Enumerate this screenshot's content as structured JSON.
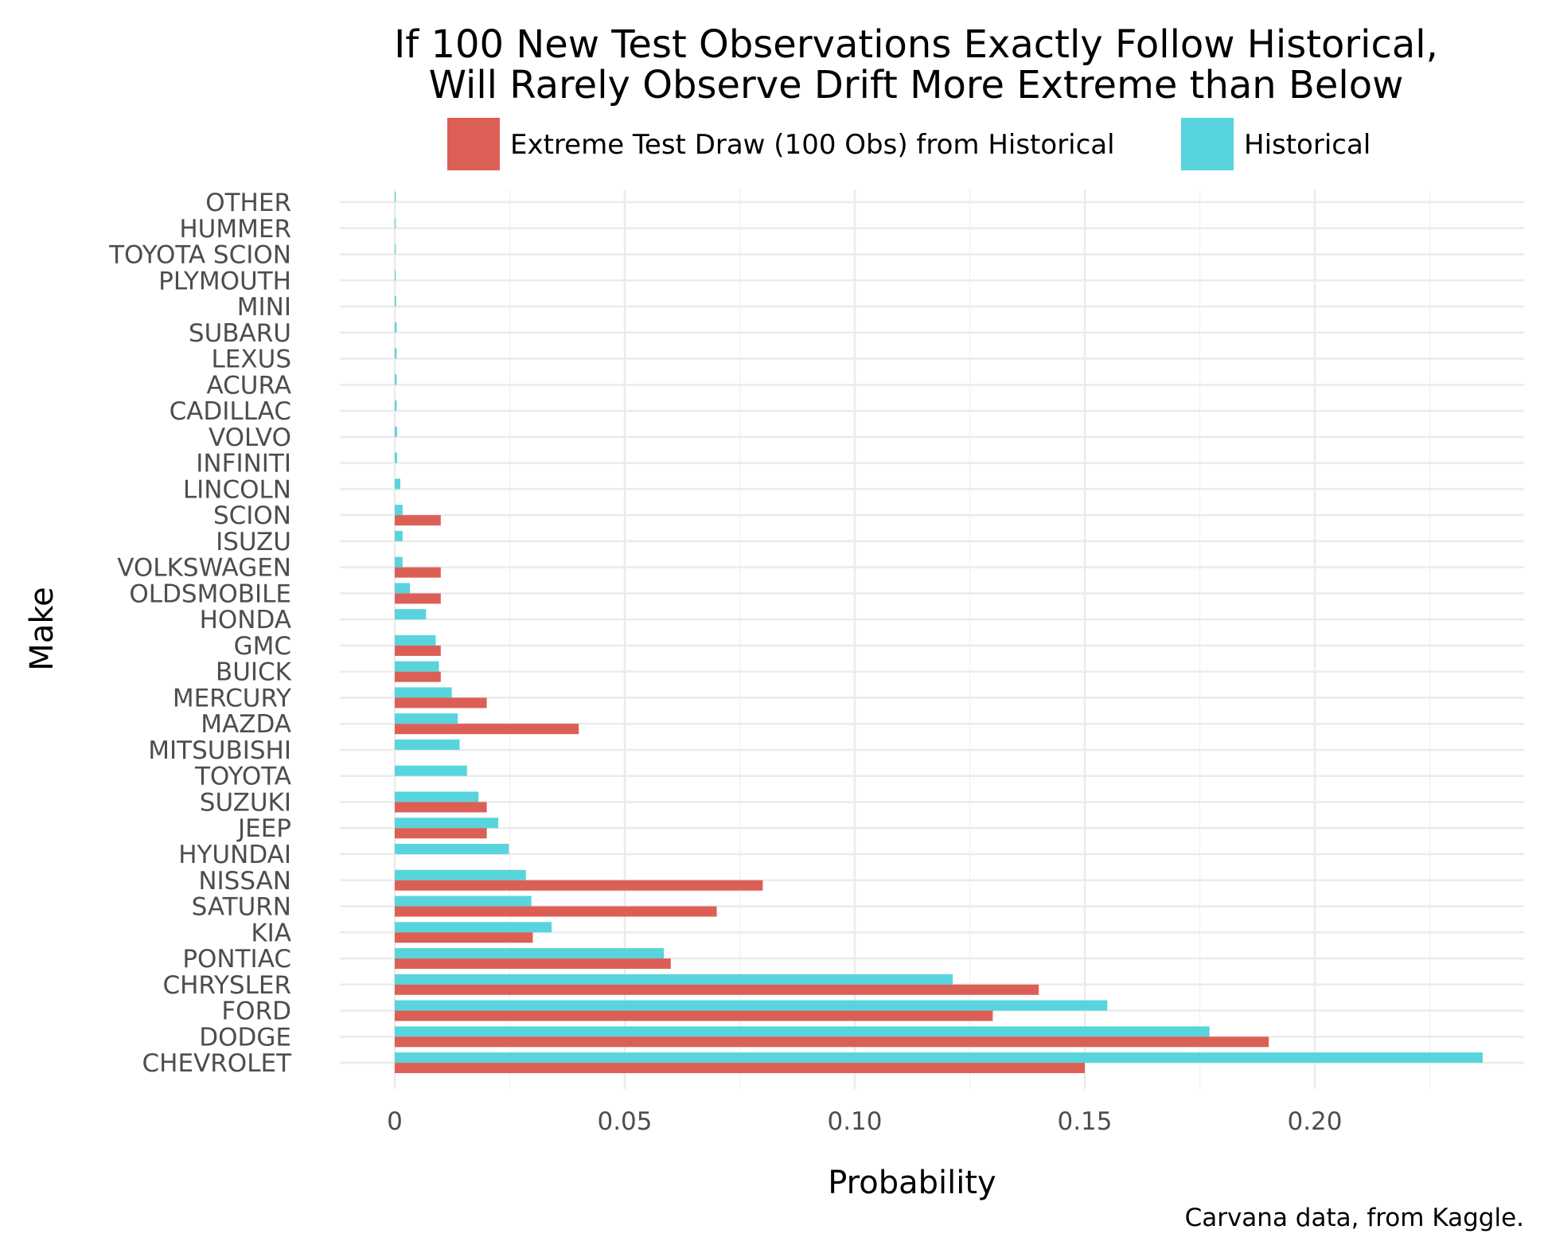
{
  "chart_data": {
    "type": "bar",
    "orientation": "horizontal",
    "title": [
      "If 100 New Test Observations Exactly Follow Historical,",
      "Will Rarely Observe Drift More Extreme than Below"
    ],
    "xlabel": "Probability",
    "ylabel": "Make",
    "caption": "Carvana data, from Kaggle.",
    "xlim": [
      -0.012,
      0.245
    ],
    "xticks": [
      {
        "value": 0,
        "label": "0"
      },
      {
        "value": 0.05,
        "label": "0.05"
      },
      {
        "value": 0.1,
        "label": "0.10"
      },
      {
        "value": 0.15,
        "label": "0.15"
      },
      {
        "value": 0.2,
        "label": "0.20"
      }
    ],
    "grid": true,
    "legend_position": "top",
    "categories": [
      "OTHER",
      "HUMMER",
      "TOYOTA SCION",
      "PLYMOUTH",
      "MINI",
      "SUBARU",
      "LEXUS",
      "ACURA",
      "CADILLAC",
      "VOLVO",
      "INFINITI",
      "LINCOLN",
      "SCION",
      "ISUZU",
      "VOLKSWAGEN",
      "OLDSMOBILE",
      "HONDA",
      "GMC",
      "BUICK",
      "MERCURY",
      "MAZDA",
      "MITSUBISHI",
      "TOYOTA",
      "SUZUKI",
      "JEEP",
      "HYUNDAI",
      "NISSAN",
      "SATURN",
      "KIA",
      "PONTIAC",
      "CHRYSLER",
      "FORD",
      "DODGE",
      "CHEVROLET"
    ],
    "series": [
      {
        "name": "Extreme Test Draw (100 Obs) from Historical",
        "color": "#dc5f56",
        "values": [
          0,
          0,
          0,
          0,
          0,
          0,
          0,
          0,
          0,
          0,
          0,
          0,
          0.01,
          0,
          0.01,
          0.01,
          0,
          0.01,
          0.01,
          0.02,
          0.04,
          0,
          0,
          0.02,
          0.02,
          0,
          0.08,
          0.07,
          0.03,
          0.06,
          0.14,
          0.13,
          0.19,
          0.15
        ]
      },
      {
        "name": "Historical",
        "color": "#58d4dc",
        "values": [
          1e-05,
          3e-05,
          4e-05,
          4e-05,
          0.0003,
          0.0004,
          0.0004,
          0.0004,
          0.0004,
          0.0005,
          0.0005,
          0.0012,
          0.0017,
          0.0017,
          0.0017,
          0.0033,
          0.0068,
          0.0089,
          0.0096,
          0.0124,
          0.0137,
          0.0141,
          0.0157,
          0.0182,
          0.0225,
          0.0248,
          0.0285,
          0.0297,
          0.0341,
          0.0585,
          0.1213,
          0.1549,
          0.1771,
          0.2365
        ]
      }
    ]
  }
}
